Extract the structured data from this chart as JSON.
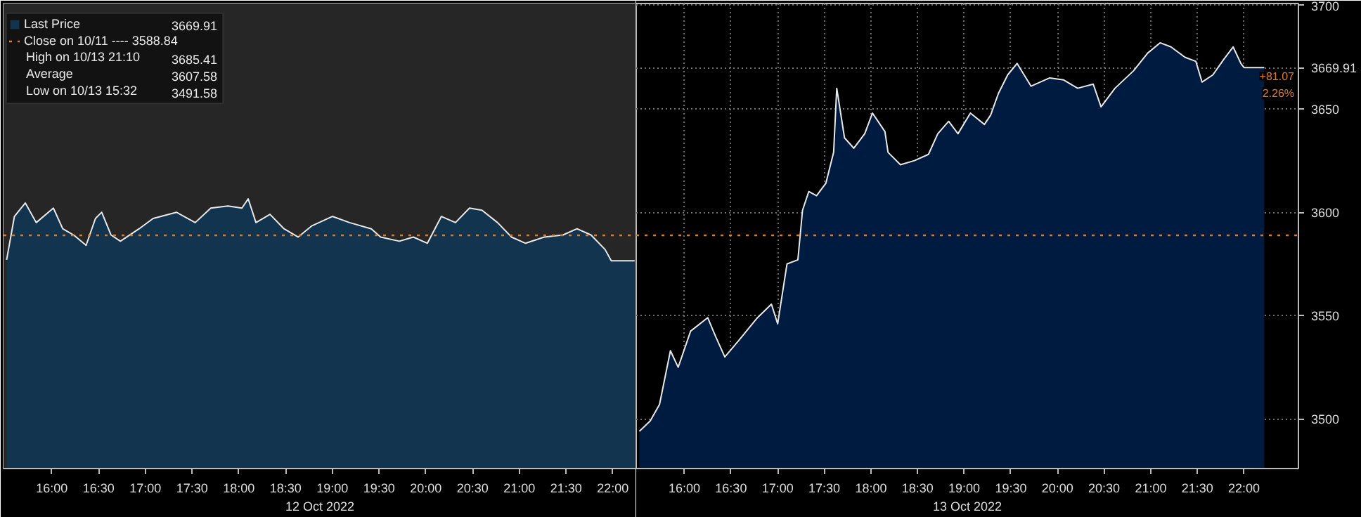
{
  "chart_data": [
    {
      "type": "area",
      "xlabel": "12 Oct 2022",
      "series": [
        {
          "name": "Last Price",
          "color": "#12344f",
          "x": [
            "2022-10-12T15:31",
            "2022-10-12T15:36",
            "2022-10-12T15:43",
            "2022-10-12T15:50",
            "2022-10-12T16:01",
            "2022-10-12T16:07",
            "2022-10-12T16:14",
            "2022-10-12T16:22",
            "2022-10-12T16:28",
            "2022-10-12T16:32",
            "2022-10-12T16:38",
            "2022-10-12T16:44",
            "2022-10-12T16:56",
            "2022-10-12T17:05",
            "2022-10-12T17:20",
            "2022-10-12T17:32",
            "2022-10-12T17:42",
            "2022-10-12T17:53",
            "2022-10-12T18:02",
            "2022-10-12T18:06",
            "2022-10-12T18:11",
            "2022-10-12T18:20",
            "2022-10-12T18:29",
            "2022-10-12T18:38",
            "2022-10-12T18:47",
            "2022-10-12T19:00",
            "2022-10-12T19:11",
            "2022-10-12T19:25",
            "2022-10-12T19:31",
            "2022-10-12T19:43",
            "2022-10-12T19:52",
            "2022-10-12T20:01",
            "2022-10-12T20:10",
            "2022-10-12T20:19",
            "2022-10-12T20:28",
            "2022-10-12T20:36",
            "2022-10-12T20:46",
            "2022-10-12T20:55",
            "2022-10-12T21:04",
            "2022-10-12T21:16",
            "2022-10-12T21:28",
            "2022-10-12T21:37",
            "2022-10-12T21:46",
            "2022-10-12T21:55",
            "2022-10-12T21:59",
            "2022-10-12T22:14"
          ],
          "values": [
            3577,
            3598,
            3604.5,
            3595,
            3602,
            3592,
            3589,
            3584,
            3597,
            3600,
            3589,
            3586,
            3592,
            3597,
            3600,
            3595,
            3602,
            3603,
            3602,
            3606.5,
            3595,
            3599,
            3592,
            3588,
            3593.5,
            3598,
            3595,
            3592,
            3588,
            3586,
            3588,
            3585,
            3598,
            3595,
            3602,
            3601,
            3595,
            3588,
            3585,
            3588,
            3589,
            3592,
            3589,
            3582,
            3576.5,
            3576.5
          ]
        }
      ],
      "xlim": [
        "2022-10-12T15:29",
        "2022-10-12T22:15"
      ],
      "xticks": [
        {
          "value": "2022-10-12T16:00",
          "label": "16:00"
        },
        {
          "value": "2022-10-12T16:30",
          "label": "16:30"
        },
        {
          "value": "2022-10-12T17:00",
          "label": "17:00"
        },
        {
          "value": "2022-10-12T17:30",
          "label": "17:30"
        },
        {
          "value": "2022-10-12T18:00",
          "label": "18:00"
        },
        {
          "value": "2022-10-12T18:30",
          "label": "18:30"
        },
        {
          "value": "2022-10-12T19:00",
          "label": "19:00"
        },
        {
          "value": "2022-10-12T19:30",
          "label": "19:30"
        },
        {
          "value": "2022-10-12T20:00",
          "label": "20:00"
        },
        {
          "value": "2022-10-12T20:30",
          "label": "20:30"
        },
        {
          "value": "2022-10-12T21:00",
          "label": "21:00"
        },
        {
          "value": "2022-10-12T21:30",
          "label": "21:30"
        },
        {
          "value": "2022-10-12T22:00",
          "label": "22:00"
        }
      ],
      "ylim": [
        3476,
        3701
      ],
      "yticks": [
        3500,
        3550,
        3600,
        3650,
        3700
      ],
      "tick_labels": "x",
      "grid": true,
      "legend": "top left",
      "ref_lines": [
        {
          "axis": "y",
          "value": 3588.84,
          "label": "Close on 10/11 ---- 3588.84",
          "color": "#e07b24",
          "line_style": "dotted"
        }
      ],
      "bands": [
        {
          "axis": "x",
          "from": "2022-10-12T15:29",
          "to": "2022-10-12T22:15",
          "color": "#262626"
        }
      ],
      "annotations": [
        "3669.91",
        "High on 10/13 21:10 3685.41",
        "Average 3607.58",
        "Low on 10/13 15:32 3491.58"
      ]
    },
    {
      "type": "area",
      "xlabel": "13 Oct 2022",
      "series": [
        {
          "color": "#001b40",
          "x": [
            "2022-10-13T15:31",
            "2022-10-13T15:38",
            "2022-10-13T15:44",
            "2022-10-13T15:51",
            "2022-10-13T15:56",
            "2022-10-13T16:04",
            "2022-10-13T16:15",
            "2022-10-13T16:20",
            "2022-10-13T16:26",
            "2022-10-13T16:35",
            "2022-10-13T16:47",
            "2022-10-13T16:56",
            "2022-10-13T17:00",
            "2022-10-13T17:06",
            "2022-10-13T17:13",
            "2022-10-13T17:16",
            "2022-10-13T17:20",
            "2022-10-13T17:25",
            "2022-10-13T17:31",
            "2022-10-13T17:36",
            "2022-10-13T17:38",
            "2022-10-13T17:43",
            "2022-10-13T17:49",
            "2022-10-13T17:56",
            "2022-10-13T18:01",
            "2022-10-13T18:09",
            "2022-10-13T18:11",
            "2022-10-13T18:19",
            "2022-10-13T18:28",
            "2022-10-13T18:37",
            "2022-10-13T18:43",
            "2022-10-13T18:50",
            "2022-10-13T18:56",
            "2022-10-13T19:04",
            "2022-10-13T19:13",
            "2022-10-13T19:17",
            "2022-10-13T19:22",
            "2022-10-13T19:28",
            "2022-10-13T19:34",
            "2022-10-13T19:43",
            "2022-10-13T19:55",
            "2022-10-13T20:04",
            "2022-10-13T20:13",
            "2022-10-13T20:23",
            "2022-10-13T20:28",
            "2022-10-13T20:37",
            "2022-10-13T20:49",
            "2022-10-13T20:58",
            "2022-10-13T21:06",
            "2022-10-13T21:13",
            "2022-10-13T21:22",
            "2022-10-13T21:29",
            "2022-10-13T21:33",
            "2022-10-13T21:40",
            "2022-10-13T21:47",
            "2022-10-13T21:53",
            "2022-10-13T21:58",
            "2022-10-13T22:00",
            "2022-10-13T22:13"
          ],
          "values": [
            3494,
            3499,
            3507,
            3533,
            3525,
            3542.5,
            3549,
            3540,
            3530,
            3538,
            3549,
            3555.5,
            3546,
            3575,
            3577,
            3601,
            3610,
            3608,
            3614,
            3629,
            3660,
            3636,
            3631,
            3638,
            3648,
            3639,
            3629,
            3623,
            3625,
            3628,
            3638,
            3644,
            3638,
            3648,
            3642.5,
            3647,
            3657.5,
            3666.5,
            3672,
            3661,
            3665,
            3664,
            3660,
            3662,
            3651,
            3660,
            3668.5,
            3677,
            3682,
            3680,
            3675,
            3673,
            3663,
            3666.5,
            3674,
            3680,
            3672,
            3670,
            3670
          ]
        }
      ],
      "xlim": [
        "2022-10-13T15:29",
        "2022-10-13T22:35"
      ],
      "xticks": [
        {
          "value": "2022-10-13T16:00",
          "label": "16:00"
        },
        {
          "value": "2022-10-13T16:30",
          "label": "16:30"
        },
        {
          "value": "2022-10-13T17:00",
          "label": "17:00"
        },
        {
          "value": "2022-10-13T17:30",
          "label": "17:30"
        },
        {
          "value": "2022-10-13T18:00",
          "label": "18:00"
        },
        {
          "value": "2022-10-13T18:30",
          "label": "18:30"
        },
        {
          "value": "2022-10-13T19:00",
          "label": "19:00"
        },
        {
          "value": "2022-10-13T19:30",
          "label": "19:30"
        },
        {
          "value": "2022-10-13T20:00",
          "label": "20:00"
        },
        {
          "value": "2022-10-13T20:30",
          "label": "20:30"
        },
        {
          "value": "2022-10-13T21:00",
          "label": "21:00"
        },
        {
          "value": "2022-10-13T21:30",
          "label": "21:30"
        },
        {
          "value": "2022-10-13T22:00",
          "label": "22:00"
        }
      ],
      "ylim": [
        3476,
        3701
      ],
      "yticks": [
        3500,
        3550,
        3600,
        3650,
        {
          "value": 3669.91,
          "label": "3669.91"
        },
        3700
      ],
      "grid": true,
      "ref_lines": [
        {
          "axis": "y",
          "value": 3588.84,
          "color": "#e07b24",
          "line_style": "dotted"
        }
      ],
      "annotations": [
        "+81.07",
        "2.26%"
      ]
    }
  ]
}
